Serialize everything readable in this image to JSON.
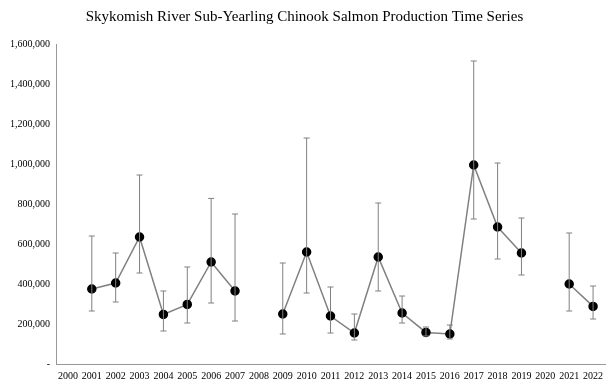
{
  "chart_data": {
    "type": "line",
    "title": "Skykomish River Sub-Yearling Chinook Salmon Production Time Series",
    "categories": [
      "2000",
      "2001",
      "2002",
      "2003",
      "2004",
      "2005",
      "2006",
      "2007",
      "2008",
      "2009",
      "2010",
      "2011",
      "2012",
      "2013",
      "2014",
      "2015",
      "2016",
      "2017",
      "2018",
      "2019",
      "2020",
      "2021",
      "2022"
    ],
    "values": [
      null,
      375000,
      405000,
      635000,
      248000,
      298000,
      510000,
      365000,
      null,
      250000,
      560000,
      240000,
      155000,
      535000,
      255000,
      158000,
      150000,
      995000,
      685000,
      555000,
      null,
      400000,
      288000
    ],
    "error_low": [
      null,
      265000,
      310000,
      455000,
      165000,
      205000,
      305000,
      215000,
      null,
      150000,
      355000,
      155000,
      120000,
      365000,
      205000,
      140000,
      125000,
      725000,
      525000,
      445000,
      null,
      265000,
      225000
    ],
    "error_high": [
      null,
      640000,
      555000,
      945000,
      365000,
      485000,
      828000,
      750000,
      null,
      505000,
      1130000,
      385000,
      250000,
      805000,
      340000,
      185000,
      195000,
      1515000,
      1005000,
      730000,
      null,
      655000,
      390000
    ],
    "color": "#808080",
    "marker": "circle",
    "ylim": [
      0,
      1600000
    ],
    "yticks": [
      {
        "value": 0,
        "label": "-"
      },
      {
        "value": 200000,
        "label": "200,000"
      },
      {
        "value": 400000,
        "label": "400,000"
      },
      {
        "value": 600000,
        "label": "600,000"
      },
      {
        "value": 800000,
        "label": "800,000"
      },
      {
        "value": 1000000,
        "label": "1,000,000"
      },
      {
        "value": 1200000,
        "label": "1,200,000"
      },
      {
        "value": 1400000,
        "label": "1,400,000"
      },
      {
        "value": 1600000,
        "label": "1,600,000"
      }
    ],
    "grid": false
  }
}
